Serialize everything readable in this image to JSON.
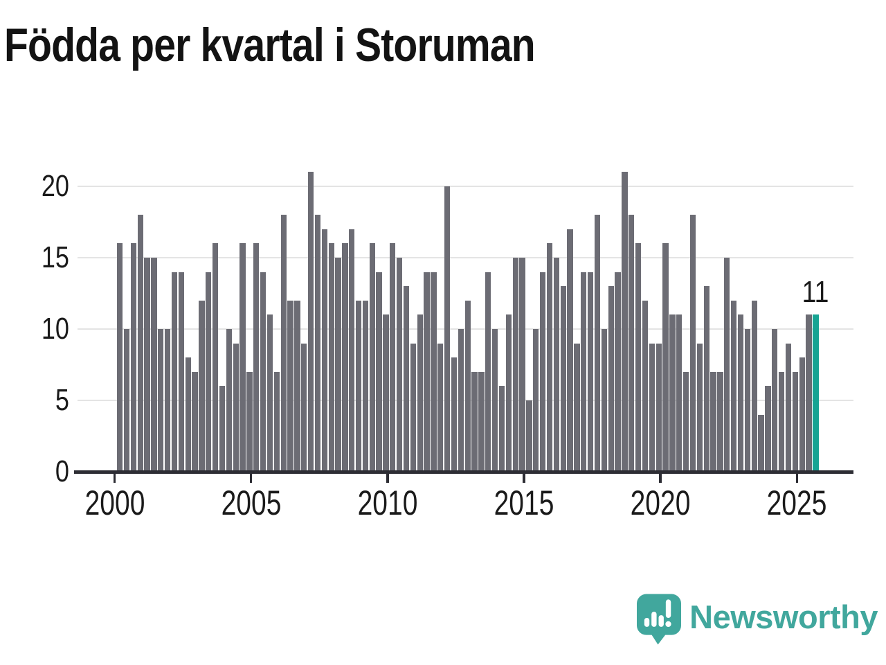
{
  "title": "Födda per kvartal i Storuman",
  "annotation": {
    "label": "11"
  },
  "logo": {
    "text": "Newsworthy",
    "icon": "speech-bubble-bar-chart-exclamation"
  },
  "colors": {
    "bar": "#6c6c74",
    "highlight": "#16a493",
    "axis": "#2d2d34",
    "grid": "#e4e4e4",
    "text": "#1a1a1a",
    "logo": "#41a79d"
  },
  "chart_data": {
    "type": "bar",
    "title": "Födda per kvartal i Storuman",
    "xlabel": "",
    "ylabel": "",
    "x_start": "2000 Q1",
    "x_end": "2025 Q3",
    "x_period": "quarter",
    "x_tick_labels": [
      "2000",
      "2005",
      "2010",
      "2015",
      "2020",
      "2025"
    ],
    "y_ticks": [
      0,
      5,
      10,
      15,
      20
    ],
    "ylim": [
      0,
      21
    ],
    "grid": "horizontal",
    "legend": "none",
    "highlight_last": true,
    "last_value_label": "11",
    "series": [
      {
        "name": "Födda per kvartal",
        "values": [
          16,
          10,
          16,
          18,
          15,
          15,
          10,
          10,
          14,
          14,
          8,
          7,
          12,
          14,
          16,
          6,
          10,
          9,
          16,
          7,
          16,
          14,
          11,
          7,
          18,
          12,
          12,
          9,
          21,
          18,
          17,
          16,
          15,
          16,
          17,
          12,
          12,
          16,
          14,
          11,
          16,
          15,
          13,
          9,
          11,
          14,
          14,
          9,
          20,
          8,
          10,
          12,
          7,
          7,
          14,
          10,
          6,
          11,
          15,
          15,
          5,
          10,
          14,
          16,
          15,
          13,
          17,
          9,
          14,
          14,
          18,
          10,
          13,
          14,
          21,
          18,
          16,
          12,
          9,
          9,
          16,
          11,
          11,
          7,
          18,
          9,
          13,
          7,
          7,
          15,
          12,
          11,
          10,
          12,
          4,
          6,
          10,
          7,
          9,
          7,
          8,
          11,
          11
        ]
      }
    ]
  }
}
